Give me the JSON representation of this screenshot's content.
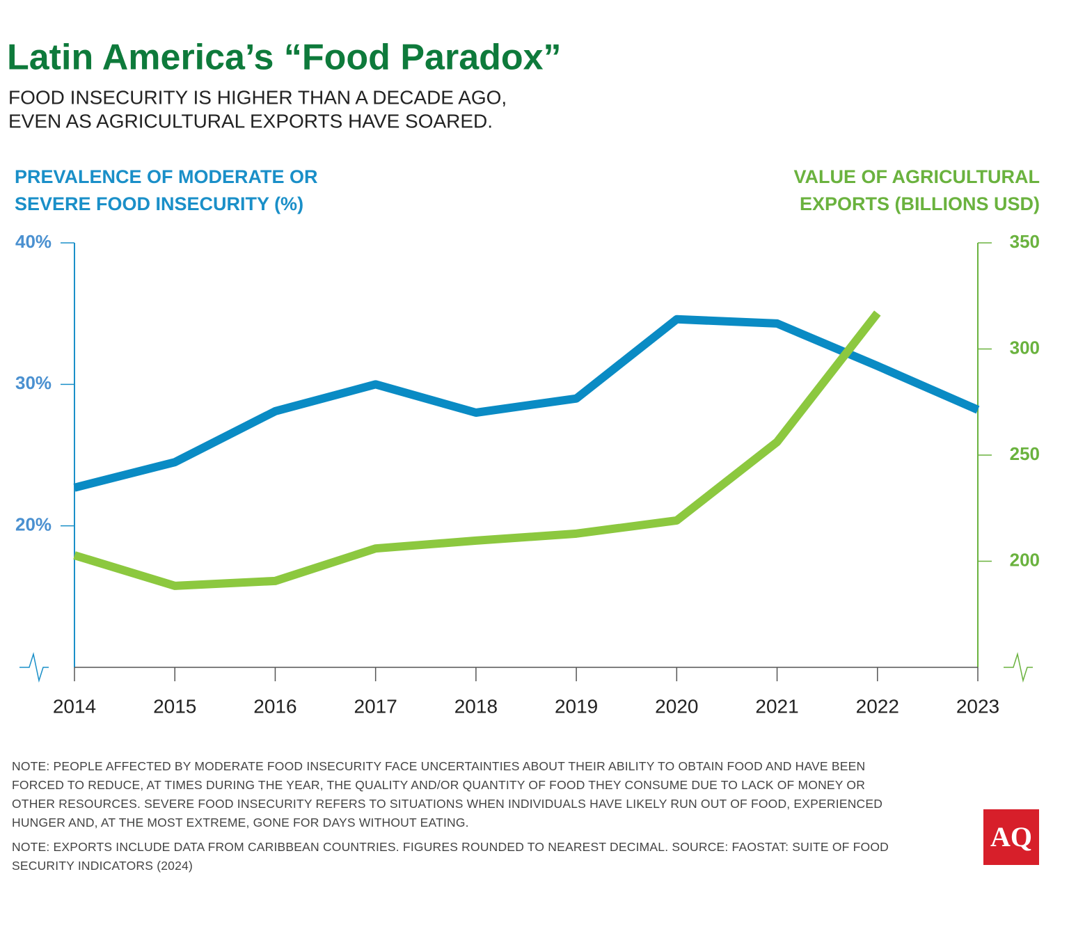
{
  "chart_data": {
    "type": "line",
    "title": "Latin America’s “Food Paradox”",
    "subtitle": [
      "FOOD INSECURITY IS HIGHER THAN A DECADE AGO,",
      "EVEN AS AGRICULTURAL EXPORTS HAVE SOARED."
    ],
    "y_label": [
      "PREVALENCE OF MODERATE OR",
      "SEVERE FOOD INSECURITY (%)"
    ],
    "y2_label": [
      "VALUE OF AGRICULTURAL",
      "EXPORTS (BILLIONS USD)"
    ],
    "x": [
      2014,
      2015,
      2016,
      2017,
      2018,
      2019,
      2020,
      2021,
      2022,
      2023
    ],
    "xlim": [
      2014,
      2023
    ],
    "xticks": [
      2014,
      2015,
      2016,
      2017,
      2018,
      2019,
      2020,
      2021,
      2022,
      2023
    ],
    "ylim": [
      10,
      40
    ],
    "yticks": [
      {
        "value": 20,
        "label": "20%"
      },
      {
        "value": 30,
        "label": "30%"
      },
      {
        "value": 40,
        "label": "40%"
      }
    ],
    "y2lim": [
      150,
      350
    ],
    "y2ticks": [
      200,
      250,
      300,
      350
    ],
    "y_color": "#1a8fc8",
    "y2_color": "#6ab23e",
    "series": [
      {
        "color": "#0a8bc4",
        "values": [
          22.7,
          24.5,
          28.1,
          30.0,
          28.0,
          29.0,
          34.6,
          34.3,
          31.3,
          28.2
        ]
      },
      {
        "color": "#8cc83f",
        "axis": "y2",
        "values": [
          202.8,
          188.4,
          190.7,
          206.0,
          209.7,
          213.0,
          219.2,
          256.2,
          316.9,
          null
        ]
      }
    ],
    "notes": [
      [
        "NOTE: PEOPLE AFFECTED BY MODERATE FOOD INSECURITY FACE UNCERTAINTIES ABOUT THEIR ABILITY TO OBTAIN FOOD AND HAVE BEEN",
        "FORCED TO REDUCE, AT TIMES DURING THE YEAR, THE QUALITY AND/OR QUANTITY OF FOOD THEY CONSUME DUE TO LACK OF MONEY OR",
        "OTHER RESOURCES. SEVERE FOOD INSECURITY REFERS TO SITUATIONS WHEN INDIVIDUALS HAVE LIKELY RUN OUT OF FOOD, EXPERIENCED",
        "HUNGER AND, AT THE MOST EXTREME, GONE FOR DAYS WITHOUT EATING."
      ],
      [
        "NOTE: EXPORTS INCLUDE DATA FROM CARIBBEAN COUNTRIES. FIGURES ROUNDED TO NEAREST DECIMAL. SOURCE: FAOSTAT: SUITE OF FOOD",
        "SECURITY INDICATORS (2024)"
      ]
    ],
    "logo": "AQ"
  }
}
